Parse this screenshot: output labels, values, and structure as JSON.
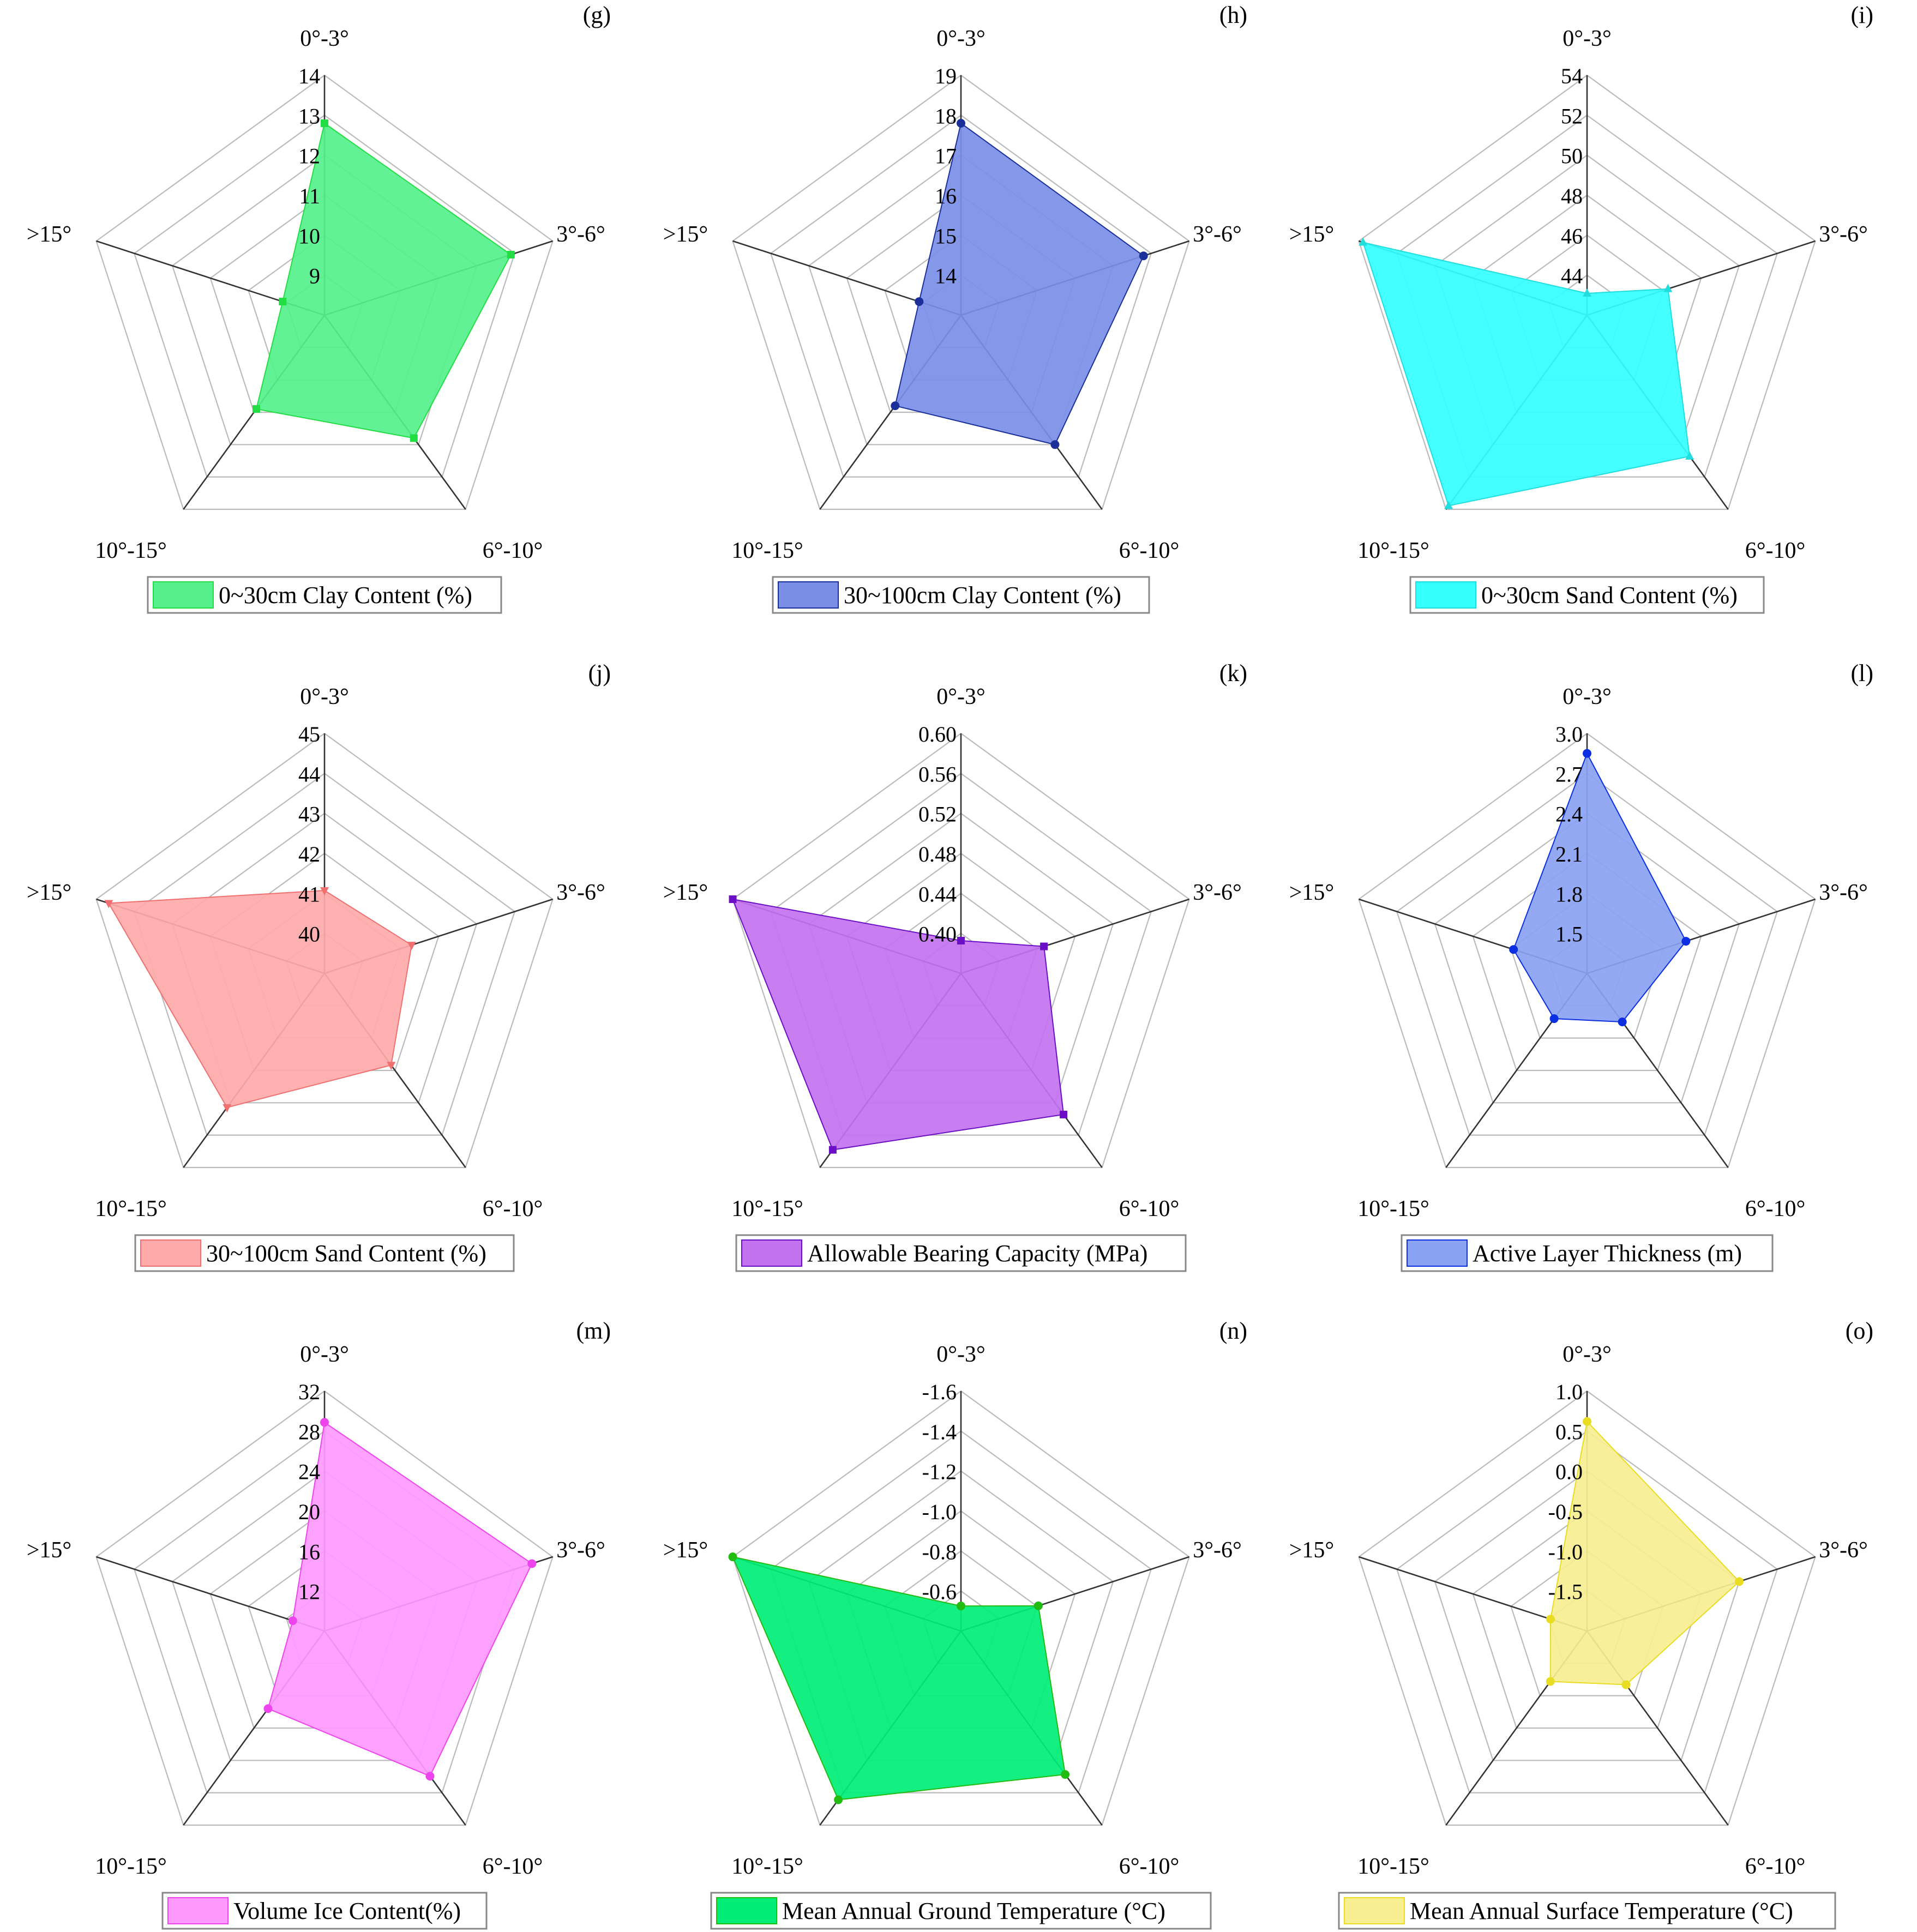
{
  "categories": [
    "0°-3°",
    "3°-6°",
    "6°-10°",
    "10°-15°",
    ">15°"
  ],
  "chart_data": [
    {
      "type": "radar",
      "panel": "(g)",
      "legend": "0~30cm Clay Content (%)",
      "color": "#55f08c",
      "stroke": "#22dd44",
      "marker": "square",
      "categories": [
        "0°-3°",
        "3°-6°",
        "6°-10°",
        "10°-15°",
        ">15°"
      ],
      "rticks": [
        "9",
        "10",
        "11",
        "12",
        "13",
        "14"
      ],
      "rlim": [
        8,
        14
      ],
      "values": [
        12.8,
        12.9,
        11.8,
        10.9,
        9.1
      ]
    },
    {
      "type": "radar",
      "panel": "(h)",
      "legend": "30~100cm Clay Content (%)",
      "color": "#7a8ee6",
      "stroke": "#1a2f9a",
      "marker": "circle",
      "categories": [
        "0°-3°",
        "3°-6°",
        "6°-10°",
        "10°-15°",
        ">15°"
      ],
      "rticks": [
        "14",
        "15",
        "16",
        "17",
        "18",
        "19"
      ],
      "rlim": [
        13,
        19
      ],
      "values": [
        17.8,
        17.8,
        17.0,
        15.8,
        14.1
      ]
    },
    {
      "type": "radar",
      "panel": "(i)",
      "legend": "0~30cm Sand Content (%)",
      "color": "#33ffff",
      "stroke": "#22dddd",
      "marker": "triangle",
      "categories": [
        "0°-3°",
        "3°-6°",
        "6°-10°",
        "10°-15°",
        ">15°"
      ],
      "rticks": [
        "44",
        "46",
        "48",
        "50",
        "52",
        "54"
      ],
      "rlim": [
        43,
        54
      ],
      "values": [
        44.0,
        46.9,
        51.0,
        53.8,
        53.8
      ]
    },
    {
      "type": "radar",
      "panel": "(j)",
      "legend": "30~100cm Sand Content (%)",
      "color": "#ffaaaa",
      "stroke": "#f07070",
      "marker": "triangle-down",
      "categories": [
        "0°-3°",
        "3°-6°",
        "6°-10°",
        "10°-15°",
        ">15°"
      ],
      "rticks": [
        "40",
        "41",
        "42",
        "43",
        "44",
        "45"
      ],
      "rlim": [
        39.5,
        45
      ],
      "values": [
        41.4,
        41.6,
        42.1,
        43.3,
        44.7
      ]
    },
    {
      "type": "radar",
      "panel": "(k)",
      "legend": "Allowable Bearing Capacity (MPa)",
      "color": "#c372f0",
      "stroke": "#6a0fc6",
      "marker": "square",
      "categories": [
        "0°-3°",
        "3°-6°",
        "6°-10°",
        "10°-15°",
        ">15°"
      ],
      "rticks": [
        "0.40",
        "0.44",
        "0.48",
        "0.52",
        "0.56",
        "0.60"
      ],
      "rlim": [
        0.38,
        0.6
      ],
      "values": [
        0.41,
        0.46,
        0.54,
        0.58,
        0.6
      ]
    },
    {
      "type": "radar",
      "panel": "(l)",
      "legend": "Active Layer Thickness (m)",
      "color": "#8aa2f2",
      "stroke": "#0a2ee0",
      "marker": "circle",
      "categories": [
        "0°-3°",
        "3°-6°",
        "6°-10°",
        "10°-15°",
        ">15°"
      ],
      "rticks": [
        "1.5",
        "1.8",
        "2.1",
        "2.4",
        "2.7",
        "3.0"
      ],
      "rlim": [
        1.2,
        3.0
      ],
      "values": [
        2.85,
        1.98,
        1.65,
        1.62,
        1.78
      ]
    },
    {
      "type": "radar",
      "panel": "(m)",
      "legend": "Volume Ice Content(%)",
      "color": "#ff99ff",
      "stroke": "#ee44ee",
      "marker": "circle",
      "categories": [
        "0°-3°",
        "3°-6°",
        "6°-10°",
        "10°-15°",
        ">15°"
      ],
      "rticks": [
        "12",
        "16",
        "20",
        "24",
        "28",
        "32"
      ],
      "rlim": [
        9,
        32
      ],
      "values": [
        29.0,
        29.9,
        26.2,
        18.2,
        12.2
      ]
    },
    {
      "type": "radar",
      "panel": "(n)",
      "legend": "Mean Annual Ground Temperature (°C)",
      "color": "#00ee77",
      "stroke": "#22bb11",
      "marker": "circle",
      "categories": [
        "0°-3°",
        "3°-6°",
        "6°-10°",
        "10°-15°",
        ">15°"
      ],
      "rticks": [
        "-0.6",
        "-0.8",
        "-1.0",
        "-1.2",
        "-1.4",
        "-1.6"
      ],
      "rlim": [
        -0.45,
        -1.6
      ],
      "values": [
        -0.57,
        -0.84,
        -1.3,
        -1.45,
        -1.6
      ]
    },
    {
      "type": "radar",
      "panel": "(o)",
      "legend": "Mean Annual Surface Temperature (°C)",
      "color": "#f6ee90",
      "stroke": "#e8dd22",
      "marker": "circle",
      "categories": [
        "0°-3°",
        "3°-6°",
        "6°-10°",
        "10°-15°",
        ">15°"
      ],
      "rticks": [
        "-1.5",
        "-1.0",
        "-0.5",
        "0.0",
        "0.5",
        "1.0"
      ],
      "rlim": [
        -2.0,
        1.0
      ],
      "values": [
        0.62,
        0.0,
        -1.17,
        -1.22,
        -1.52
      ]
    }
  ]
}
